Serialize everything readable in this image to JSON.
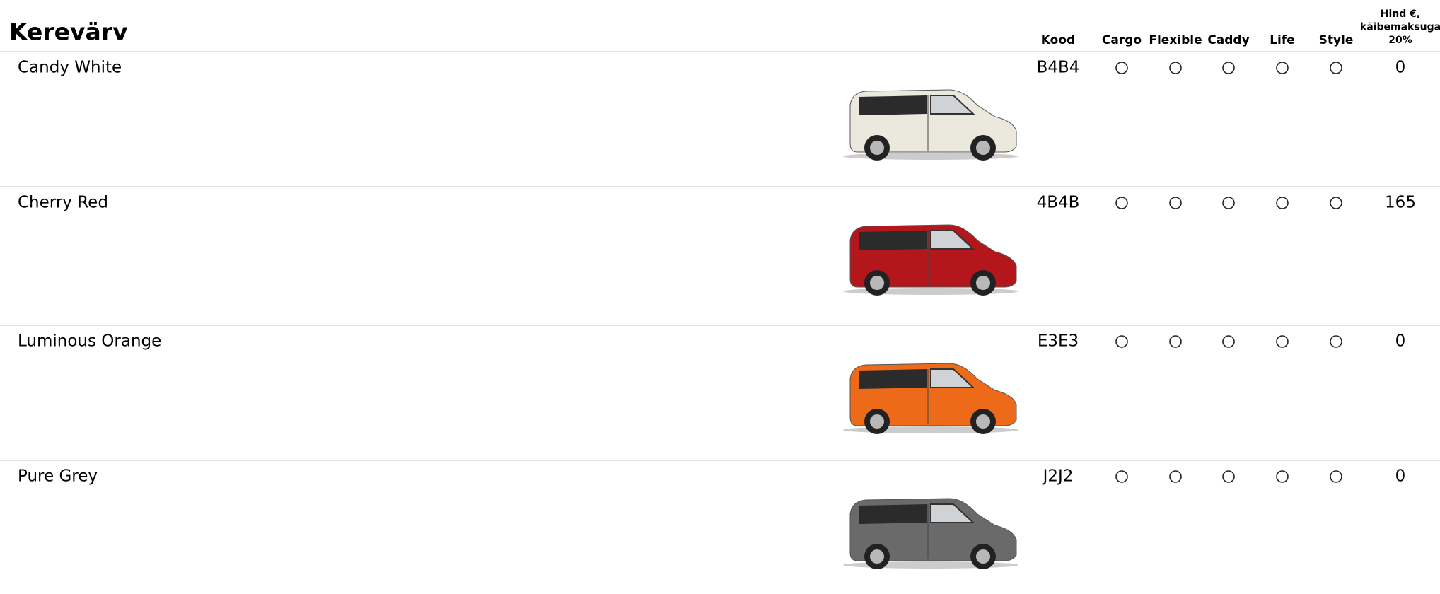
{
  "title": "Kerevärv",
  "table": {
    "columns": [
      "Kood",
      "Cargo",
      "Flexible",
      "Caddy",
      "Life",
      "Style",
      "Hind €,\nkäibemaksuga\n20%"
    ],
    "rows": [
      [
        "Candy White",
        "B4B4",
        "0"
      ],
      [
        "Cherry Red",
        "4B4B",
        "165"
      ],
      [
        "Luminous Orange",
        "E3E3",
        "0"
      ],
      [
        "Pure Grey",
        "J2J2",
        "0"
      ]
    ]
  }
}
